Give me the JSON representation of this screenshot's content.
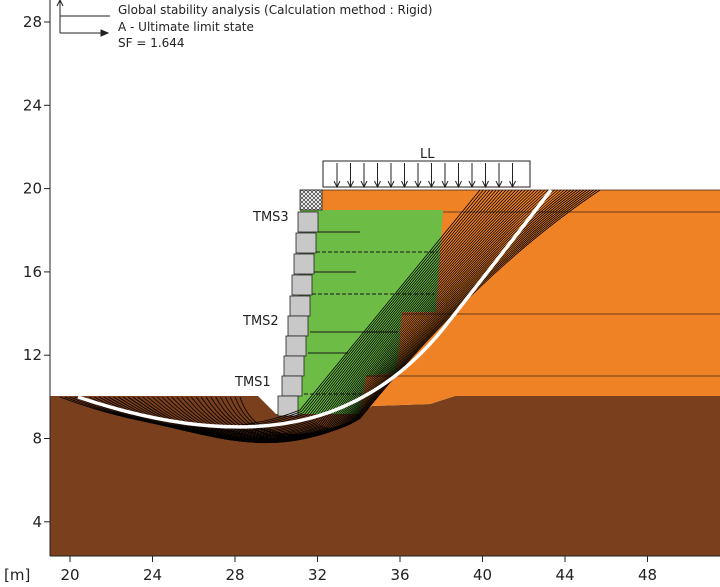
{
  "header": {
    "line1": "Global stability analysis (Calculation method : Rigid)",
    "line2": "A - Ultimate limit state",
    "line3": "SF = 1.644"
  },
  "axes": {
    "unit_label": "[m]",
    "x_ticks": [
      "20",
      "24",
      "28",
      "32",
      "36",
      "40",
      "44",
      "48"
    ],
    "y_ticks": [
      "28",
      "24",
      "20",
      "16",
      "12",
      "8",
      "4"
    ]
  },
  "labels": {
    "load": "LL",
    "tms3": "TMS3",
    "tms2": "TMS2",
    "tms1": "TMS1"
  },
  "colors": {
    "foundation_soil": "#7a3f1c",
    "retained_fill": "#f08226",
    "reinforced_fill": "#6cbc45",
    "facing_block": "#c8c8c8",
    "critical_surface": "#ffffff",
    "trial_surfaces": "#000000"
  }
}
